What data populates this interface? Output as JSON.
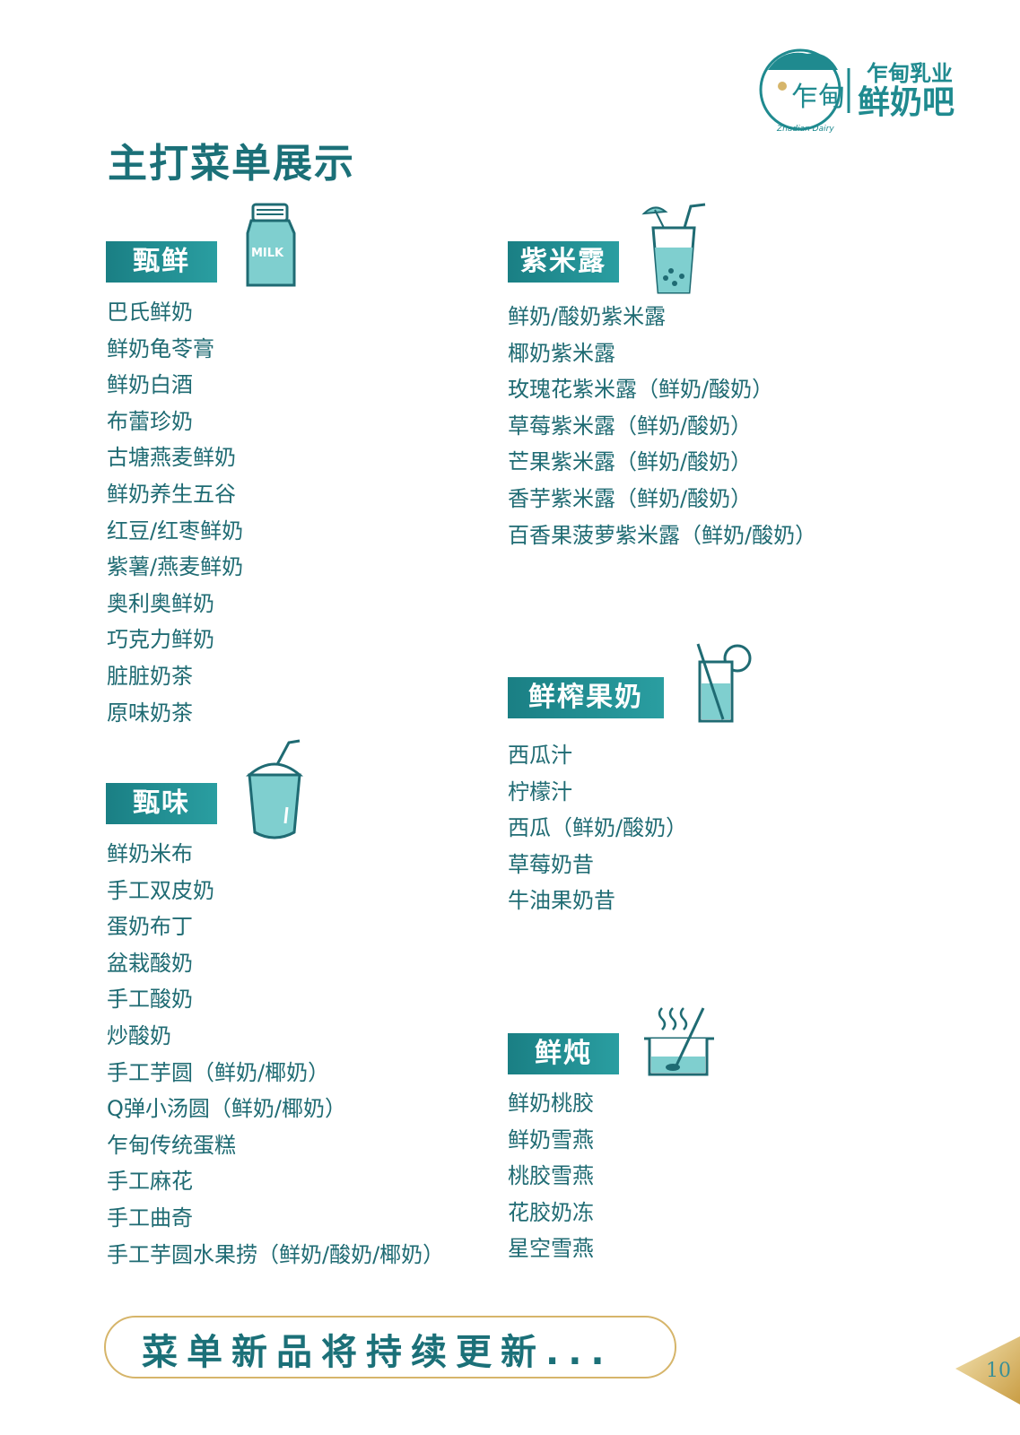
{
  "header": {
    "title": "主打菜单展示",
    "logo_mark_text": "乍甸",
    "logo_text": "乍甸乳业",
    "logo_text_2": "鲜奶吧",
    "logo_sub": "Zhadian Dairy"
  },
  "sections": {
    "zhenxian": {
      "title": "甄鲜",
      "icon_label": "MILK",
      "items": [
        "巴氏鲜奶",
        "鲜奶龟苓膏",
        "鲜奶白酒",
        "布蕾珍奶",
        "古塘燕麦鲜奶",
        "鲜奶养生五谷",
        "红豆/红枣鲜奶",
        "紫薯/燕麦鲜奶",
        "奥利奥鲜奶",
        "巧克力鲜奶",
        "脏脏奶茶",
        "原味奶茶"
      ]
    },
    "zhenwei": {
      "title": "甄味",
      "items": [
        "鲜奶米布",
        "手工双皮奶",
        "蛋奶布丁",
        "盆栽酸奶",
        "手工酸奶",
        "炒酸奶",
        "手工芋圆（鲜奶/椰奶）",
        "Q弹小汤圆（鲜奶/椰奶）",
        "乍甸传统蛋糕",
        "手工麻花",
        "手工曲奇",
        "手工芋圆水果捞（鲜奶/酸奶/椰奶）"
      ]
    },
    "zimilu": {
      "title": "紫米露",
      "items": [
        "鲜奶/酸奶紫米露",
        "椰奶紫米露",
        "玫瑰花紫米露（鲜奶/酸奶）",
        "草莓紫米露（鲜奶/酸奶）",
        "芒果紫米露（鲜奶/酸奶）",
        "香芋紫米露（鲜奶/酸奶）",
        "百香果菠萝紫米露（鲜奶/酸奶）"
      ]
    },
    "xianzha": {
      "title": "鲜榨果奶",
      "items": [
        "西瓜汁",
        "柠檬汁",
        "西瓜（鲜奶/酸奶）",
        "草莓奶昔",
        "牛油果奶昔"
      ]
    },
    "xiandun": {
      "title": "鲜炖",
      "items": [
        "鲜奶桃胶",
        "鲜奶雪燕",
        "桃胶雪燕",
        "花胶奶冻",
        "星空雪燕"
      ]
    }
  },
  "footer": {
    "banner": "菜单新品将持续更新...",
    "page_number": "10"
  },
  "colors": {
    "primary": "#1b7078",
    "teal_light": "#7fcfcf",
    "gold": "#d6b56a"
  }
}
